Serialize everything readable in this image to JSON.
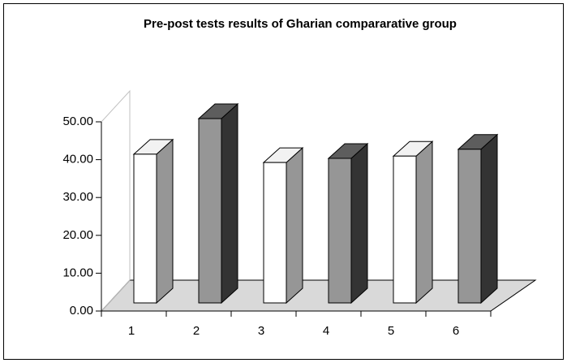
{
  "chart_data": {
    "type": "bar3d",
    "title": "Pre-post tests results of Gharian compararative group",
    "categories": [
      "1",
      "2",
      "3",
      "4",
      "5",
      "6"
    ],
    "values": [
      39.3,
      48.7,
      37.1,
      38.2,
      38.8,
      40.6
    ],
    "colors": [
      "#ffffff",
      "#969696",
      "#ffffff",
      "#969696",
      "#ffffff",
      "#969696"
    ],
    "ylim": [
      0,
      50
    ],
    "yticks": [
      {
        "value": 0,
        "label": "0.00"
      },
      {
        "value": 10,
        "label": "10.00"
      },
      {
        "value": 20,
        "label": "20.00"
      },
      {
        "value": 30,
        "label": "30.00"
      },
      {
        "value": 40,
        "label": "40.00"
      },
      {
        "value": 50,
        "label": "50.00"
      }
    ]
  }
}
